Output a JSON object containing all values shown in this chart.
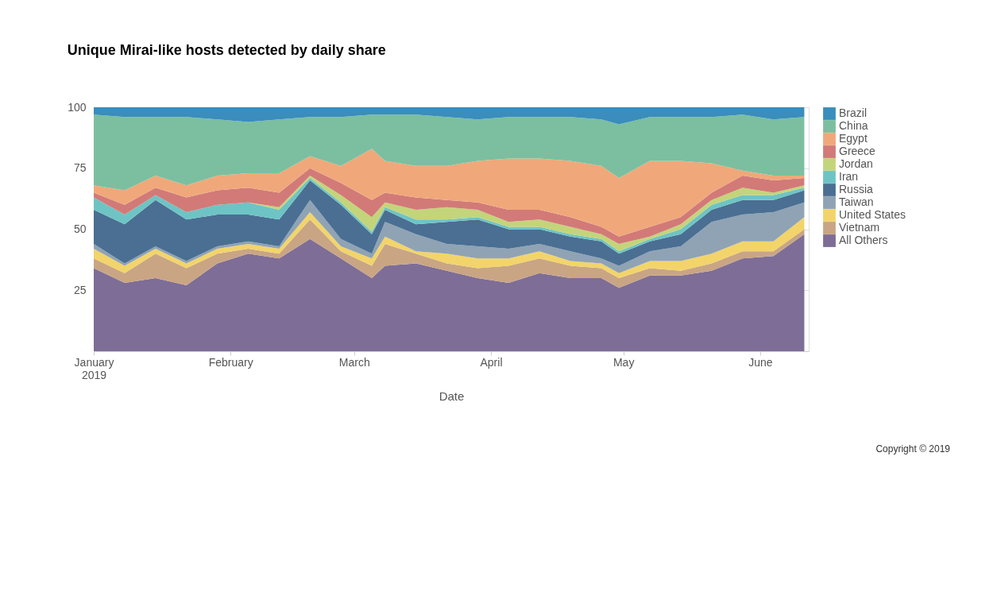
{
  "chart_data": {
    "type": "area",
    "title": "Unique Mirai-like hosts detected by daily share",
    "xlabel": "Date",
    "stacked": true,
    "grid": "y",
    "legend": "right",
    "x": [
      "2019-01-01",
      "2019-01-08",
      "2019-01-15",
      "2019-01-22",
      "2019-01-29",
      "2019-02-05",
      "2019-02-12",
      "2019-02-19",
      "2019-02-26",
      "2019-03-05",
      "2019-03-08",
      "2019-03-15",
      "2019-03-22",
      "2019-03-29",
      "2019-04-05",
      "2019-04-12",
      "2019-04-19",
      "2019-04-26",
      "2019-04-30",
      "2019-05-07",
      "2019-05-14",
      "2019-05-21",
      "2019-05-28",
      "2019-06-04",
      "2019-06-11"
    ],
    "xlim": [
      "2019-01-01",
      "2019-06-12"
    ],
    "xticks": [
      {
        "value": "2019-01-01",
        "label": "January\n2019"
      },
      {
        "value": "2019-02-01",
        "label": "February"
      },
      {
        "value": "2019-03-01",
        "label": "March"
      },
      {
        "value": "2019-04-01",
        "label": "April"
      },
      {
        "value": "2019-05-01",
        "label": "May"
      },
      {
        "value": "2019-06-01",
        "label": "June"
      }
    ],
    "ylim": [
      0,
      100
    ],
    "yticks": [
      25,
      50,
      75,
      100
    ],
    "series": [
      {
        "name": "All Others",
        "color": "#7e6d96",
        "values": [
          34,
          28,
          30,
          27,
          36,
          40,
          38,
          46,
          38,
          30,
          35,
          36,
          33,
          30,
          28,
          32,
          30,
          30,
          26,
          31,
          31,
          33,
          38,
          39,
          48
        ]
      },
      {
        "name": "Vietnam",
        "color": "#c9a584",
        "values": [
          4,
          4,
          10,
          7,
          4,
          2,
          2,
          8,
          3,
          5,
          9,
          4,
          3,
          4,
          7,
          6,
          5,
          4,
          4,
          3,
          2,
          3,
          3,
          2,
          2
        ]
      },
      {
        "name": "United States",
        "color": "#f2d46a",
        "values": [
          4,
          3,
          2,
          2,
          2,
          2,
          2,
          3,
          2,
          3,
          3,
          1,
          4,
          4,
          3,
          3,
          2,
          2,
          2,
          3,
          4,
          4,
          4,
          4,
          5
        ]
      },
      {
        "name": "Taiwan",
        "color": "#8fa3b4",
        "values": [
          2,
          1,
          1,
          1,
          1,
          1,
          1,
          5,
          3,
          2,
          6,
          7,
          4,
          5,
          4,
          3,
          4,
          2,
          3,
          4,
          6,
          13,
          11,
          12,
          6
        ]
      },
      {
        "name": "Russia",
        "color": "#4a6f92",
        "values": [
          14,
          16,
          19,
          17,
          13,
          11,
          11,
          8,
          14,
          8,
          5,
          4,
          9,
          11,
          8,
          6,
          6,
          7,
          5,
          4,
          5,
          5,
          6,
          5,
          5
        ]
      },
      {
        "name": "Iran",
        "color": "#6ec4c4",
        "values": [
          5,
          4,
          2,
          3,
          4,
          5,
          4,
          1,
          1,
          1,
          1,
          2,
          1,
          1,
          1,
          1,
          1,
          1,
          1,
          1,
          2,
          2,
          2,
          2,
          1
        ]
      },
      {
        "name": "Jordan",
        "color": "#c4d47a",
        "values": [
          0,
          0,
          0,
          0,
          0,
          0,
          1,
          1,
          3,
          6,
          2,
          4,
          5,
          3,
          2,
          3,
          3,
          2,
          3,
          1,
          2,
          2,
          3,
          1,
          1
        ]
      },
      {
        "name": "Greece",
        "color": "#d27a78",
        "values": [
          2,
          4,
          3,
          6,
          6,
          6,
          6,
          3,
          5,
          7,
          4,
          5,
          3,
          3,
          5,
          4,
          4,
          3,
          3,
          4,
          3,
          3,
          5,
          5,
          3
        ]
      },
      {
        "name": "Egypt",
        "color": "#f0a87a",
        "values": [
          3,
          6,
          5,
          5,
          6,
          6,
          8,
          5,
          7,
          21,
          13,
          13,
          14,
          17,
          21,
          21,
          23,
          25,
          24,
          27,
          23,
          12,
          2,
          2,
          1
        ]
      },
      {
        "name": "China",
        "color": "#7bbfa0",
        "values": [
          29,
          30,
          24,
          28,
          23,
          21,
          22,
          16,
          20,
          14,
          19,
          21,
          20,
          17,
          17,
          17,
          18,
          19,
          22,
          18,
          18,
          19,
          23,
          23,
          24
        ]
      },
      {
        "name": "Brazil",
        "color": "#3a8dbc",
        "values": [
          3,
          4,
          4,
          4,
          5,
          6,
          5,
          4,
          4,
          3,
          3,
          3,
          4,
          5,
          4,
          4,
          4,
          5,
          7,
          4,
          4,
          4,
          3,
          5,
          4
        ]
      }
    ],
    "annotations": [
      "Copyright © 2019"
    ]
  }
}
